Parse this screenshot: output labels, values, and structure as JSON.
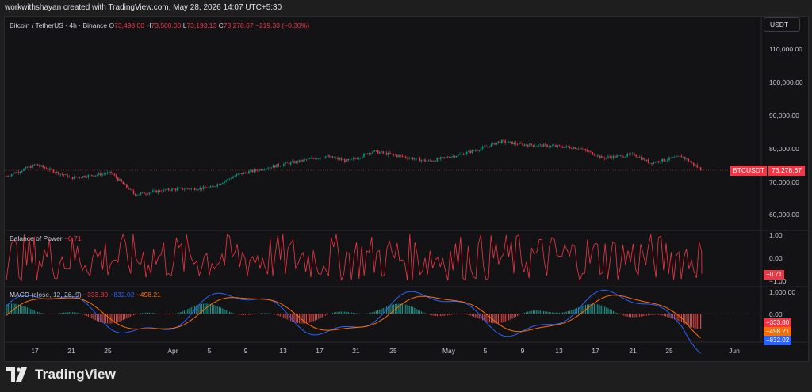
{
  "credit": "workwithshayan created with TradingView.com, May 28, 2026 14:07 UTC+5:30",
  "main_legend": {
    "symbol": "Bitcoin / TetherUS · 4h · Binance",
    "o_key": "O",
    "o_val": "73,498.00",
    "h_key": "H",
    "h_val": "73,500.00",
    "l_key": "L",
    "l_val": "73,193.13",
    "c_key": "C",
    "c_val": "73,278.67",
    "change": "−219.33 (−0.30%)"
  },
  "currency": "USDT",
  "price_axis": [
    "110,000.00",
    "100,000.00",
    "90,000.00",
    "80,000.00",
    "70,000.00",
    "60,000.00"
  ],
  "last_price": {
    "symbol": "BTCUSDT",
    "value": "73,278.67"
  },
  "bop": {
    "name": "Balance of Power",
    "value": "−0.71",
    "axis": [
      "1.00",
      "0.00",
      "−1.00"
    ]
  },
  "macd": {
    "name": "MACD",
    "params": "close, 12, 26, 9",
    "hist": "−333.80",
    "macd": "−832.02",
    "signal": "−498.21",
    "axis": [
      "1,000.00",
      "0.00"
    ]
  },
  "time_axis": [
    "17",
    "21",
    "25",
    "Apr",
    "5",
    "9",
    "13",
    "17",
    "21",
    "25",
    "May",
    "5",
    "9",
    "13",
    "17",
    "21",
    "25",
    "Jun"
  ],
  "brand": "TradingView",
  "colors": {
    "up": "#089981",
    "down": "#f23645",
    "macd": "#2962ff",
    "signal": "#ff6d00",
    "bop": "#f23645"
  },
  "chart_data": {
    "type": "line",
    "series": [
      {
        "name": "BTCUSDT",
        "x": [
          "Mar 14",
          "Mar 17",
          "Mar 21",
          "Mar 25",
          "Mar 29",
          "Apr 1",
          "Apr 5",
          "Apr 9",
          "Apr 13",
          "Apr 17",
          "Apr 21",
          "Apr 25",
          "Apr 29",
          "May 1",
          "May 5",
          "May 7",
          "May 9",
          "May 13",
          "May 15",
          "May 17",
          "May 21",
          "May 25",
          "May 28"
        ],
        "y": [
          71500,
          75000,
          71000,
          72500,
          66000,
          67500,
          68000,
          72000,
          74500,
          77500,
          76000,
          79000,
          76000,
          78000,
          80000,
          82000,
          81000,
          80500,
          80000,
          77000,
          78000,
          77500,
          73278.67
        ]
      }
    ],
    "ylim": [
      55000,
      115000
    ]
  }
}
